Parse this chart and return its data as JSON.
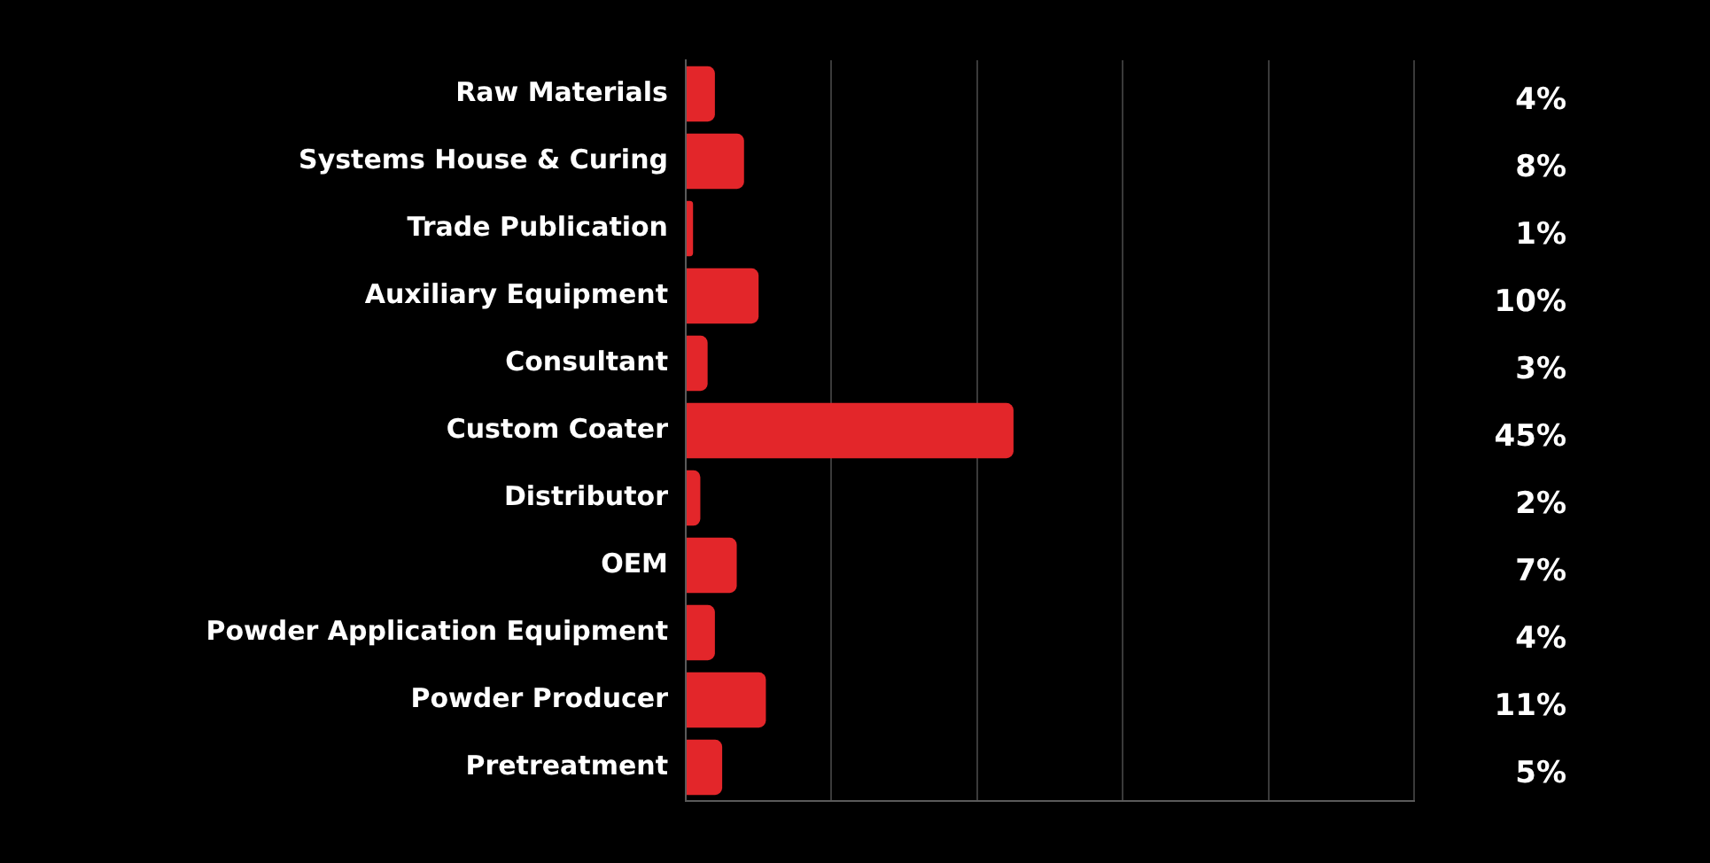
{
  "chart_data": {
    "type": "bar",
    "orientation": "horizontal",
    "categories": [
      "Raw Materials",
      "Systems House & Curing",
      "Trade Publication",
      "Auxiliary Equipment",
      "Consultant",
      "Custom Coater",
      "Distributor",
      "OEM",
      "Powder Application Equipment",
      "Powder Producer",
      "Pretreatment"
    ],
    "values": [
      4,
      8,
      1,
      10,
      3,
      45,
      2,
      7,
      4,
      11,
      5
    ],
    "value_labels": [
      "4%",
      "8%",
      "1%",
      "10%",
      "3%",
      "45%",
      "2%",
      "7%",
      "4%",
      "11%",
      "5%"
    ],
    "color": "#e3262a",
    "xlim": [
      0,
      100
    ],
    "xticks": [
      {
        "value": 0,
        "label": null
      },
      {
        "value": 20,
        "label": null
      },
      {
        "value": 40,
        "label": null
      },
      {
        "value": 60,
        "label": null
      },
      {
        "value": 80,
        "label": null
      },
      {
        "value": 100,
        "label": null
      }
    ],
    "grid": "x",
    "tick_labels": "y",
    "legend": false
  }
}
